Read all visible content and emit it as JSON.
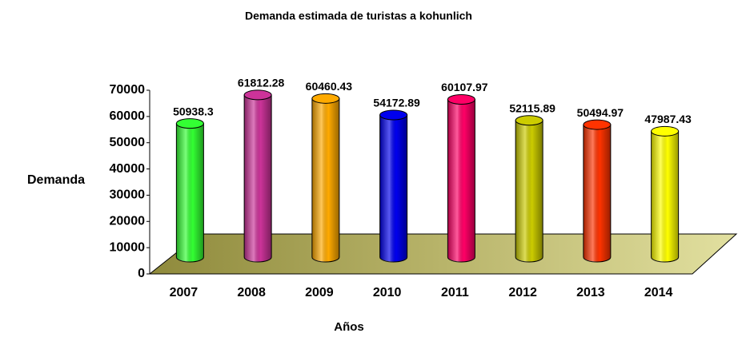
{
  "chart_data": {
    "type": "bar",
    "title": "Demanda estimada de turistas a kohunlich",
    "x_label": "Años",
    "y_label": "Demanda",
    "categories": [
      "2007",
      "2008",
      "2009",
      "2010",
      "2011",
      "2012",
      "2013",
      "2014"
    ],
    "values": [
      50938.3,
      61812.28,
      60460.43,
      54172.89,
      60107.97,
      52115.89,
      50494.97,
      47987.43
    ],
    "colors": [
      "#33ff33",
      "#cc3399",
      "#ffaa00",
      "#0000ee",
      "#ff0066",
      "#cccc00",
      "#ff3300",
      "#ffff00"
    ],
    "ylim": [
      0,
      70000
    ],
    "yticks": [
      0,
      10000,
      20000,
      30000,
      40000,
      50000,
      60000,
      70000
    ]
  }
}
